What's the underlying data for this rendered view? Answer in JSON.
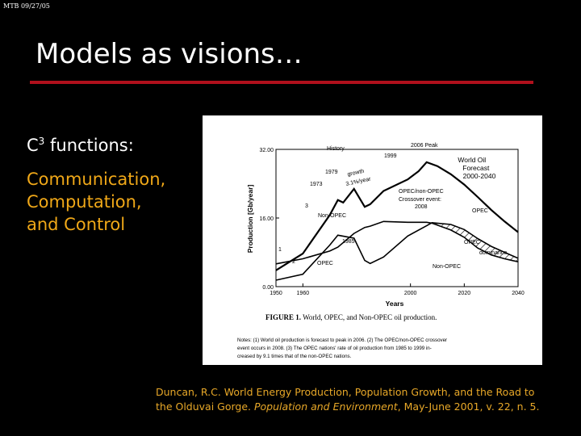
{
  "slide": {
    "stamp": "MTB 09/27/05",
    "title": "Models as visions…",
    "c3": {
      "base": "C",
      "sup": "3",
      "rest": " functions:"
    },
    "roles": [
      "Communication,",
      "Computation,",
      "and Control"
    ]
  },
  "figure": {
    "caption_bold": "FIGURE 1.",
    "caption_rest": " World, OPEC, and Non-OPEC oil production.",
    "notes": [
      "Notes: (1) World oil production is forecast to peak in 2006. (2) The OPEC/non-OPEC crossover",
      "event occurs in 2008. (3) The OPEC nations' rate of oil production from 1985 to 1999 in-",
      "creased by 9.1 times that of the non-OPEC nations."
    ]
  },
  "chart_data": {
    "type": "line",
    "title": "",
    "xlabel": "Years",
    "ylabel": "Production [Gb/year]",
    "xlim": [
      1950,
      2040
    ],
    "ylim": [
      0,
      32
    ],
    "xticks": [
      "1950",
      "1960",
      "2000",
      "2020",
      "2040"
    ],
    "yticks": [
      "0.00",
      "16.00",
      "32.00"
    ],
    "series": [
      {
        "name": "World Oil Forecast 2000-2040",
        "x": [
          1950,
          1960,
          1970,
          1973,
          1975,
          1979,
          1983,
          1985,
          1990,
          1999,
          2003,
          2006,
          2010,
          2015,
          2020,
          2025,
          2030,
          2035,
          2040
        ],
        "y": [
          3.8,
          7.7,
          16.7,
          20.2,
          19.6,
          22.8,
          18.6,
          19.2,
          22.3,
          25.0,
          26.9,
          29.0,
          28.1,
          26.2,
          23.8,
          20.9,
          17.9,
          15.2,
          12.7
        ]
      },
      {
        "name": "Non-OPEC",
        "x": [
          1950,
          1960,
          1970,
          1973,
          1979,
          1983,
          1985,
          1990,
          1999,
          2006,
          2008,
          2015,
          2020,
          2025,
          2030,
          2035,
          2040
        ],
        "y": [
          5.3,
          6.5,
          8.3,
          9.2,
          12.4,
          13.8,
          14.1,
          15.2,
          15.0,
          15.0,
          14.8,
          13.2,
          11.5,
          9.0,
          7.4,
          6.5,
          5.8
        ]
      },
      {
        "name": "OPEC",
        "x": [
          1950,
          1960,
          1970,
          1973,
          1979,
          1983,
          1985,
          1990,
          1999,
          2006,
          2008,
          2015,
          2020,
          2025,
          2030,
          2035,
          2040
        ],
        "y": [
          1.5,
          2.9,
          9.7,
          12.0,
          11.3,
          6.1,
          5.4,
          6.9,
          11.8,
          14.2,
          14.9,
          14.5,
          13.3,
          11.2,
          9.4,
          8.0,
          6.6
        ]
      }
    ],
    "annotations": [
      {
        "text": "History"
      },
      {
        "text": "2006 Peak"
      },
      {
        "text": "1999"
      },
      {
        "text": "1979"
      },
      {
        "text": "growth"
      },
      {
        "text": "3.1%/year"
      },
      {
        "text": "1973"
      },
      {
        "text": "OPEC/non-OPEC"
      },
      {
        "text": "Crossover event:"
      },
      {
        "text": "2008"
      },
      {
        "text": "OPEC"
      },
      {
        "text": "Non-OPEC"
      },
      {
        "text": "1985"
      },
      {
        "text": "OPEC"
      },
      {
        "text": "dominance"
      },
      {
        "text": "Non-OPEC"
      },
      {
        "text": "OPEC"
      },
      {
        "text": "1"
      },
      {
        "text": "2"
      },
      {
        "text": "3"
      }
    ],
    "colors": {
      "line": "#000000",
      "background": "#ffffff",
      "hatch": "#000000"
    }
  },
  "citation": {
    "line1": "Duncan, R.C. World Energy Production, Population Growth, and the Road to",
    "line2_a": "the Olduvai Gorge. ",
    "line2_journal": "Population and Environment",
    "line2_b": ", May-June 2001, v. 22, n. 5."
  }
}
